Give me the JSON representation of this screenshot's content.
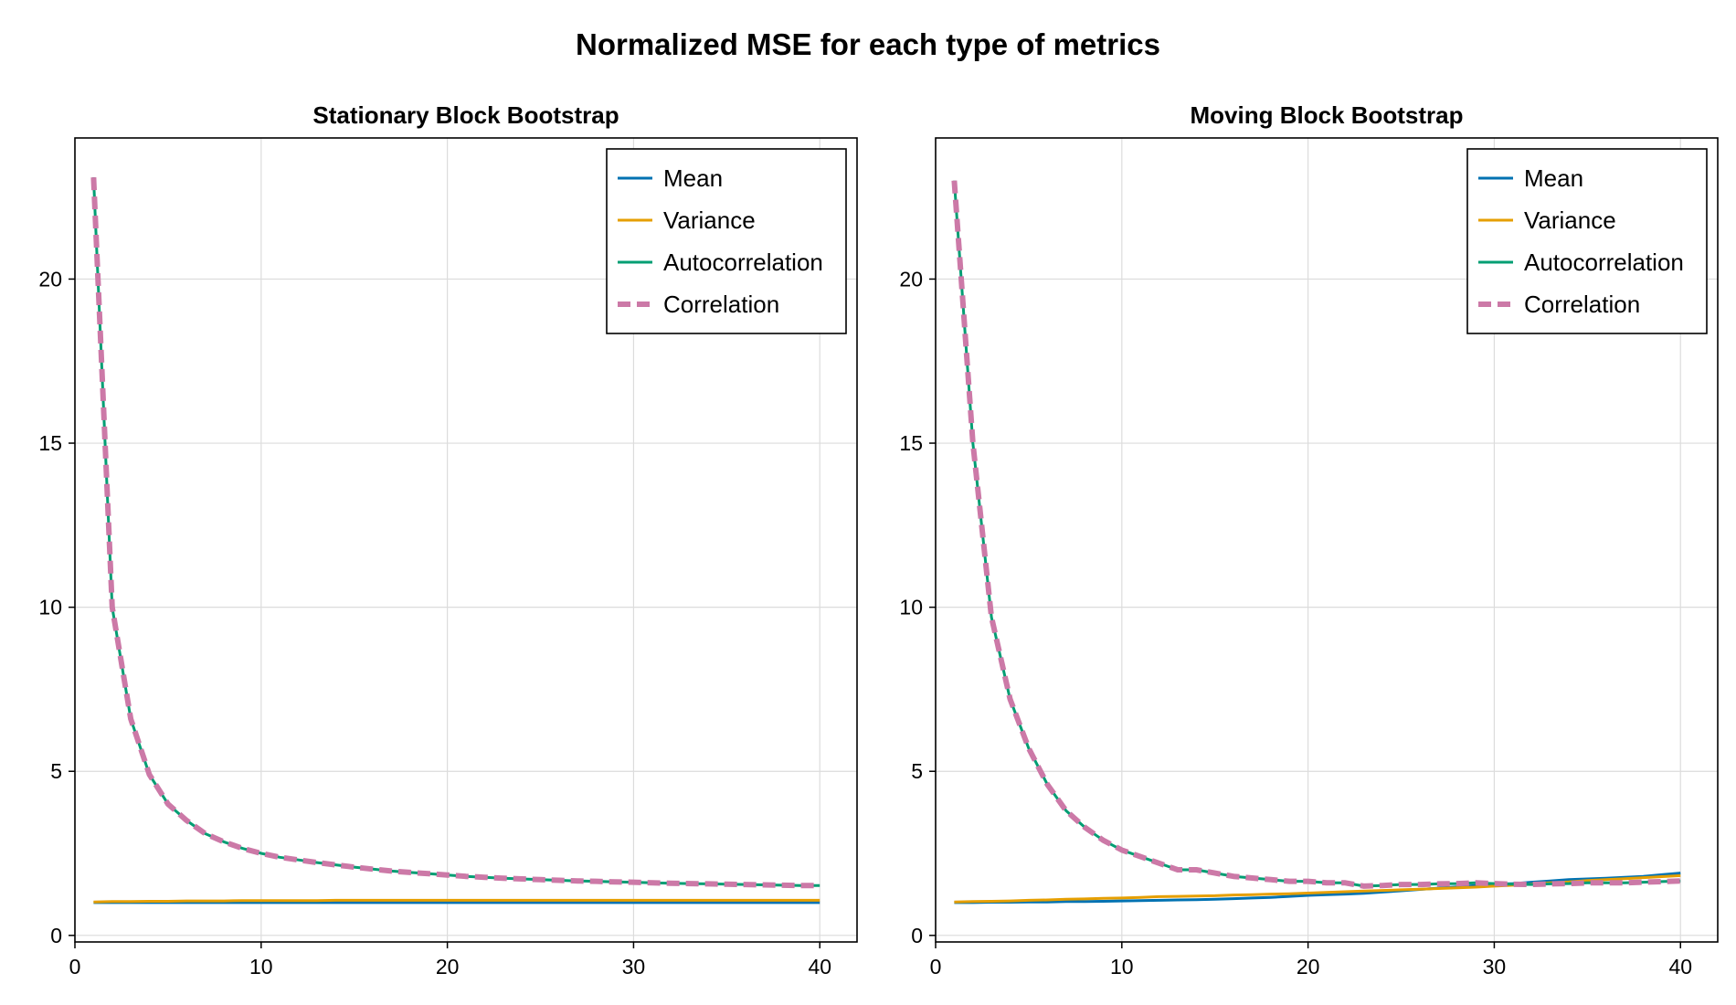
{
  "figure": {
    "title": "Normalized MSE for each type of metrics"
  },
  "colors": {
    "Mean": "#0072b2",
    "Variance": "#e69f00",
    "Autocorrelation": "#009e73",
    "Correlation": "#cc79a7",
    "grid": "#dcdcdc",
    "axis": "#000000"
  },
  "chart_data": [
    {
      "type": "line",
      "title": "Stationary Block Bootstrap",
      "xlabel": "",
      "ylabel": "",
      "xlim": [
        0,
        42
      ],
      "ylim": [
        -0.2,
        24.3
      ],
      "xticks": [
        0,
        10,
        20,
        30,
        40
      ],
      "yticks": [
        0,
        5,
        10,
        15,
        20
      ],
      "grid": true,
      "legend_position": "top-right",
      "x": [
        1,
        2,
        3,
        4,
        5,
        6,
        7,
        8,
        9,
        10,
        11,
        12,
        13,
        14,
        15,
        16,
        17,
        18,
        19,
        20,
        21,
        22,
        23,
        24,
        25,
        26,
        27,
        28,
        29,
        30,
        31,
        32,
        33,
        34,
        35,
        36,
        37,
        38,
        39,
        40
      ],
      "series": [
        {
          "name": "Mean",
          "style": "solid",
          "values": [
            1.0,
            1.0,
            1.0,
            1.0,
            1.0,
            1.0,
            1.0,
            1.0,
            1.0,
            1.0,
            1.0,
            1.0,
            1.0,
            1.0,
            1.0,
            1.0,
            1.0,
            1.0,
            1.0,
            1.0,
            1.0,
            1.0,
            1.0,
            1.0,
            1.0,
            1.0,
            1.0,
            1.0,
            1.0,
            1.0,
            1.0,
            1.0,
            1.0,
            1.0,
            1.0,
            1.0,
            1.0,
            1.0,
            1.0,
            1.0
          ]
        },
        {
          "name": "Variance",
          "style": "solid",
          "values": [
            1.02,
            1.03,
            1.03,
            1.04,
            1.04,
            1.05,
            1.05,
            1.05,
            1.06,
            1.06,
            1.06,
            1.06,
            1.06,
            1.07,
            1.07,
            1.07,
            1.07,
            1.07,
            1.07,
            1.07,
            1.07,
            1.07,
            1.07,
            1.07,
            1.07,
            1.07,
            1.07,
            1.07,
            1.07,
            1.07,
            1.07,
            1.07,
            1.07,
            1.07,
            1.07,
            1.07,
            1.07,
            1.07,
            1.07,
            1.07
          ]
        },
        {
          "name": "Autocorrelation",
          "style": "solid",
          "values": [
            23.1,
            10.0,
            6.6,
            4.9,
            4.0,
            3.5,
            3.1,
            2.85,
            2.65,
            2.5,
            2.38,
            2.3,
            2.22,
            2.15,
            2.08,
            2.02,
            1.96,
            1.92,
            1.88,
            1.84,
            1.8,
            1.77,
            1.74,
            1.72,
            1.7,
            1.68,
            1.66,
            1.65,
            1.63,
            1.62,
            1.6,
            1.59,
            1.58,
            1.57,
            1.56,
            1.55,
            1.54,
            1.53,
            1.52,
            1.52
          ]
        },
        {
          "name": "Correlation",
          "style": "dashed",
          "values": [
            23.1,
            10.0,
            6.6,
            4.9,
            4.0,
            3.5,
            3.1,
            2.85,
            2.65,
            2.5,
            2.38,
            2.3,
            2.22,
            2.15,
            2.08,
            2.02,
            1.96,
            1.92,
            1.88,
            1.84,
            1.8,
            1.77,
            1.74,
            1.72,
            1.7,
            1.68,
            1.66,
            1.65,
            1.63,
            1.62,
            1.6,
            1.59,
            1.58,
            1.57,
            1.56,
            1.55,
            1.54,
            1.53,
            1.52,
            1.52
          ]
        }
      ]
    },
    {
      "type": "line",
      "title": "Moving Block Bootstrap",
      "xlabel": "",
      "ylabel": "",
      "xlim": [
        0,
        42
      ],
      "ylim": [
        -0.2,
        24.3
      ],
      "xticks": [
        0,
        10,
        20,
        30,
        40
      ],
      "yticks": [
        0,
        5,
        10,
        15,
        20
      ],
      "grid": true,
      "legend_position": "top-right",
      "x": [
        1,
        2,
        3,
        4,
        5,
        6,
        7,
        8,
        9,
        10,
        11,
        12,
        13,
        14,
        15,
        16,
        17,
        18,
        19,
        20,
        21,
        22,
        23,
        24,
        25,
        26,
        27,
        28,
        29,
        30,
        31,
        32,
        33,
        34,
        35,
        36,
        37,
        38,
        39,
        40
      ],
      "series": [
        {
          "name": "Mean",
          "style": "solid",
          "values": [
            1.0,
            1.0,
            1.01,
            1.01,
            1.02,
            1.02,
            1.03,
            1.03,
            1.04,
            1.05,
            1.06,
            1.07,
            1.08,
            1.09,
            1.1,
            1.12,
            1.14,
            1.16,
            1.19,
            1.22,
            1.24,
            1.26,
            1.28,
            1.32,
            1.36,
            1.4,
            1.44,
            1.48,
            1.52,
            1.55,
            1.58,
            1.62,
            1.66,
            1.7,
            1.72,
            1.74,
            1.77,
            1.8,
            1.85,
            1.9
          ]
        },
        {
          "name": "Variance",
          "style": "solid",
          "values": [
            1.02,
            1.03,
            1.04,
            1.05,
            1.07,
            1.08,
            1.1,
            1.11,
            1.13,
            1.14,
            1.16,
            1.18,
            1.19,
            1.2,
            1.21,
            1.23,
            1.24,
            1.26,
            1.27,
            1.29,
            1.31,
            1.33,
            1.35,
            1.37,
            1.39,
            1.41,
            1.43,
            1.45,
            1.47,
            1.5,
            1.53,
            1.56,
            1.6,
            1.63,
            1.67,
            1.7,
            1.73,
            1.76,
            1.79,
            1.82
          ]
        },
        {
          "name": "Autocorrelation",
          "style": "solid",
          "values": [
            23.0,
            15.0,
            9.7,
            7.2,
            5.7,
            4.6,
            3.8,
            3.3,
            2.9,
            2.6,
            2.4,
            2.2,
            2.0,
            2.0,
            1.9,
            1.8,
            1.75,
            1.7,
            1.65,
            1.65,
            1.6,
            1.6,
            1.5,
            1.52,
            1.55,
            1.55,
            1.57,
            1.58,
            1.6,
            1.58,
            1.56,
            1.55,
            1.57,
            1.58,
            1.6,
            1.6,
            1.6,
            1.62,
            1.64,
            1.66
          ]
        },
        {
          "name": "Correlation",
          "style": "dashed",
          "values": [
            23.0,
            15.0,
            9.7,
            7.2,
            5.7,
            4.6,
            3.8,
            3.3,
            2.9,
            2.6,
            2.4,
            2.2,
            2.0,
            2.0,
            1.9,
            1.8,
            1.75,
            1.7,
            1.65,
            1.65,
            1.6,
            1.6,
            1.5,
            1.52,
            1.55,
            1.55,
            1.57,
            1.58,
            1.6,
            1.58,
            1.56,
            1.55,
            1.57,
            1.58,
            1.6,
            1.6,
            1.6,
            1.62,
            1.64,
            1.66
          ]
        }
      ]
    }
  ]
}
